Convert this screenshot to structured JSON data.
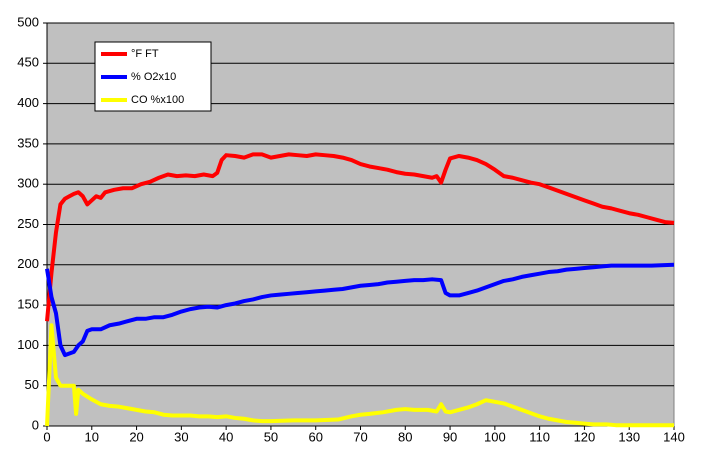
{
  "chart_data": {
    "type": "line",
    "grid": true,
    "legend": "upper-left",
    "background": "#c0c0c0",
    "xlim": [
      0,
      140
    ],
    "xticks": [
      0,
      10,
      20,
      30,
      40,
      50,
      60,
      70,
      80,
      90,
      100,
      110,
      120,
      130,
      140
    ],
    "ylim": [
      0,
      500
    ],
    "yticks": [
      0,
      50,
      100,
      150,
      200,
      250,
      300,
      350,
      400,
      450,
      500
    ],
    "series": [
      {
        "name": "°F FT",
        "color": "#ff0000",
        "x": [
          0,
          1,
          2,
          3,
          4,
          5,
          6,
          7,
          8,
          9,
          10,
          11,
          12,
          13,
          15,
          17,
          19,
          21,
          23,
          25,
          27,
          29,
          31,
          33,
          35,
          37,
          38,
          39,
          40,
          42,
          44,
          46,
          48,
          50,
          52,
          54,
          56,
          58,
          60,
          62,
          64,
          66,
          68,
          70,
          72,
          74,
          76,
          78,
          80,
          82,
          84,
          86,
          87,
          88,
          89,
          90,
          92,
          94,
          96,
          98,
          100,
          102,
          104,
          106,
          108,
          110,
          112,
          114,
          116,
          118,
          120,
          122,
          124,
          126,
          128,
          130,
          132,
          134,
          136,
          138,
          140
        ],
        "values": [
          130,
          190,
          240,
          275,
          282,
          285,
          288,
          290,
          285,
          275,
          280,
          285,
          283,
          290,
          293,
          295,
          295,
          300,
          303,
          308,
          312,
          310,
          311,
          310,
          312,
          310,
          314,
          330,
          336,
          335,
          333,
          337,
          337,
          333,
          335,
          337,
          336,
          335,
          337,
          336,
          335,
          333,
          330,
          325,
          322,
          320,
          318,
          315,
          313,
          312,
          310,
          308,
          310,
          302,
          318,
          332,
          335,
          333,
          330,
          325,
          318,
          310,
          308,
          305,
          302,
          300,
          296,
          292,
          288,
          284,
          280,
          276,
          272,
          270,
          267,
          264,
          262,
          259,
          256,
          253,
          252
        ]
      },
      {
        "name": "% O2x10",
        "color": "#0000ff",
        "x": [
          0,
          1,
          2,
          3,
          4,
          5,
          6,
          7,
          8,
          9,
          10,
          12,
          14,
          16,
          18,
          20,
          22,
          24,
          26,
          28,
          30,
          32,
          34,
          36,
          38,
          40,
          42,
          44,
          46,
          48,
          50,
          52,
          54,
          56,
          58,
          60,
          62,
          64,
          66,
          68,
          70,
          72,
          74,
          76,
          78,
          80,
          82,
          84,
          86,
          88,
          89,
          90,
          92,
          94,
          96,
          98,
          100,
          102,
          104,
          106,
          108,
          110,
          112,
          114,
          116,
          118,
          120,
          122,
          124,
          126,
          128,
          130,
          135,
          140
        ],
        "values": [
          195,
          160,
          140,
          100,
          88,
          90,
          92,
          100,
          105,
          118,
          120,
          120,
          125,
          127,
          130,
          133,
          133,
          135,
          135,
          138,
          142,
          145,
          147,
          148,
          147,
          150,
          152,
          155,
          157,
          160,
          162,
          163,
          164,
          165,
          166,
          167,
          168,
          169,
          170,
          172,
          174,
          175,
          176,
          178,
          179,
          180,
          181,
          181,
          182,
          181,
          165,
          162,
          162,
          165,
          168,
          172,
          176,
          180,
          182,
          185,
          187,
          189,
          191,
          192,
          194,
          195,
          196,
          197,
          198,
          199,
          199,
          199,
          199,
          200
        ]
      },
      {
        "name": "CO %x100",
        "color": "#ffff00",
        "x": [
          0,
          1,
          2,
          3,
          4,
          5,
          6,
          6.5,
          7,
          8,
          10,
          12,
          14,
          16,
          18,
          20,
          22,
          24,
          26,
          28,
          30,
          32,
          34,
          36,
          38,
          40,
          42,
          44,
          46,
          48,
          50,
          55,
          60,
          65,
          68,
          70,
          72,
          75,
          78,
          80,
          82,
          85,
          87,
          88,
          89,
          90,
          92,
          94,
          96,
          98,
          100,
          102,
          104,
          106,
          108,
          110,
          112,
          114,
          116,
          118,
          120,
          122,
          125,
          127,
          130,
          140
        ],
        "values": [
          0,
          125,
          60,
          50,
          50,
          50,
          50,
          15,
          45,
          40,
          33,
          27,
          25,
          24,
          22,
          20,
          18,
          17,
          14,
          13,
          13,
          13,
          12,
          12,
          11,
          12,
          10,
          9,
          7,
          6,
          6,
          7,
          7,
          8,
          12,
          14,
          15,
          17,
          20,
          21,
          20,
          20,
          18,
          27,
          18,
          17,
          20,
          23,
          27,
          32,
          30,
          28,
          24,
          20,
          16,
          12,
          9,
          7,
          5,
          4,
          3,
          2,
          2,
          1,
          1,
          1
        ]
      }
    ]
  }
}
